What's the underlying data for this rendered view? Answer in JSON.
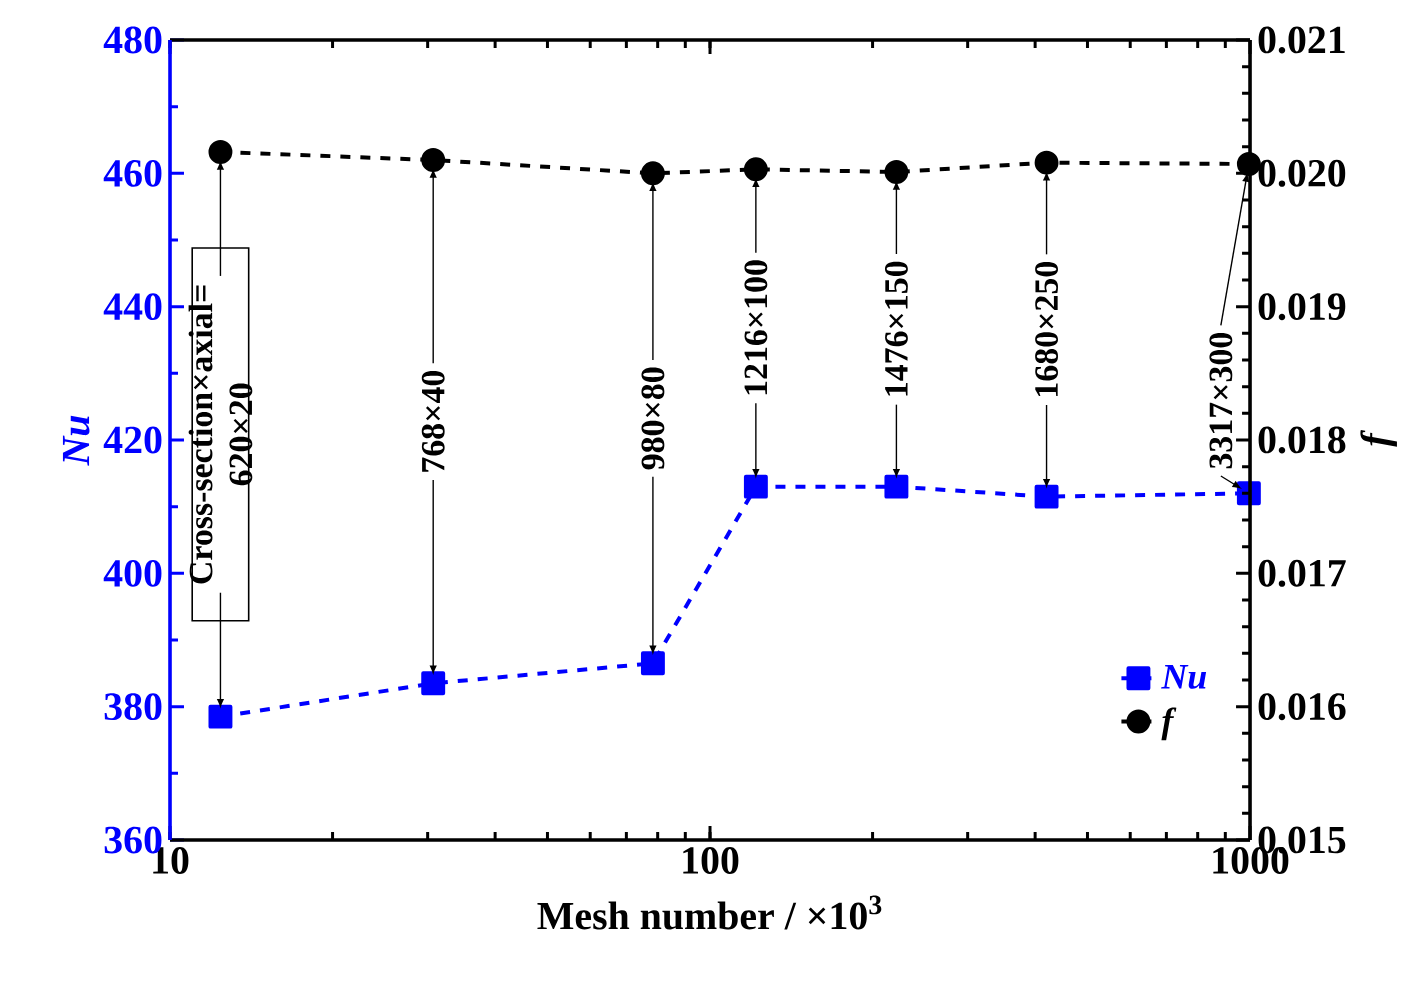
{
  "chart_data": {
    "type": "line",
    "xlabel": "Mesh number / ×10$^{3}$",
    "ylabel": "Nu",
    "y2label": "f",
    "x": [
      12.4,
      30.72,
      78.4,
      121.6,
      221.4,
      420,
      995.1
    ],
    "series": [
      {
        "name": "Nu",
        "color": "#0000ff",
        "marker": "square",
        "line_style": "dashed",
        "values": [
          378.5,
          383.5,
          386.5,
          413,
          413,
          411.5,
          412
        ]
      },
      {
        "name": "f",
        "color": "#000000",
        "marker": "circle",
        "line_style": "dashed",
        "axis": "y2",
        "values": [
          0.02016,
          0.0201,
          0.02,
          0.02003,
          0.02001,
          0.02008,
          0.02007
        ]
      }
    ],
    "log": "x",
    "xlim": [
      10,
      1000
    ],
    "xticks": [
      10,
      100,
      1000
    ],
    "ylim": [
      360,
      480
    ],
    "yticks": [
      360,
      380,
      400,
      420,
      440,
      460,
      480
    ],
    "y2lim": [
      0.015,
      0.021
    ],
    "y2ticks": [
      0.015,
      0.016,
      0.017,
      0.018,
      0.019,
      {
        "value": 0.02,
        "label": "0.020"
      },
      0.021
    ],
    "grid": false,
    "legend": "bottom right",
    "annotations": [
      {
        "text": "Cross-section×axial= 620×20",
        "x": 12.4,
        "y": 378.5
      },
      {
        "text": "768×40",
        "x": 30.72,
        "y": 383.5
      },
      {
        "text": "980×80",
        "x": 78.4,
        "y": 386.5
      },
      {
        "text": "1216×100",
        "x": 121.6,
        "y": 413
      },
      {
        "text": "1476×150",
        "x": 221.4,
        "y": 413
      },
      {
        "text": "1680×250",
        "x": 420,
        "y": 411.5
      },
      {
        "text": "3317×300",
        "x": 995.1,
        "y": 412
      }
    ]
  }
}
